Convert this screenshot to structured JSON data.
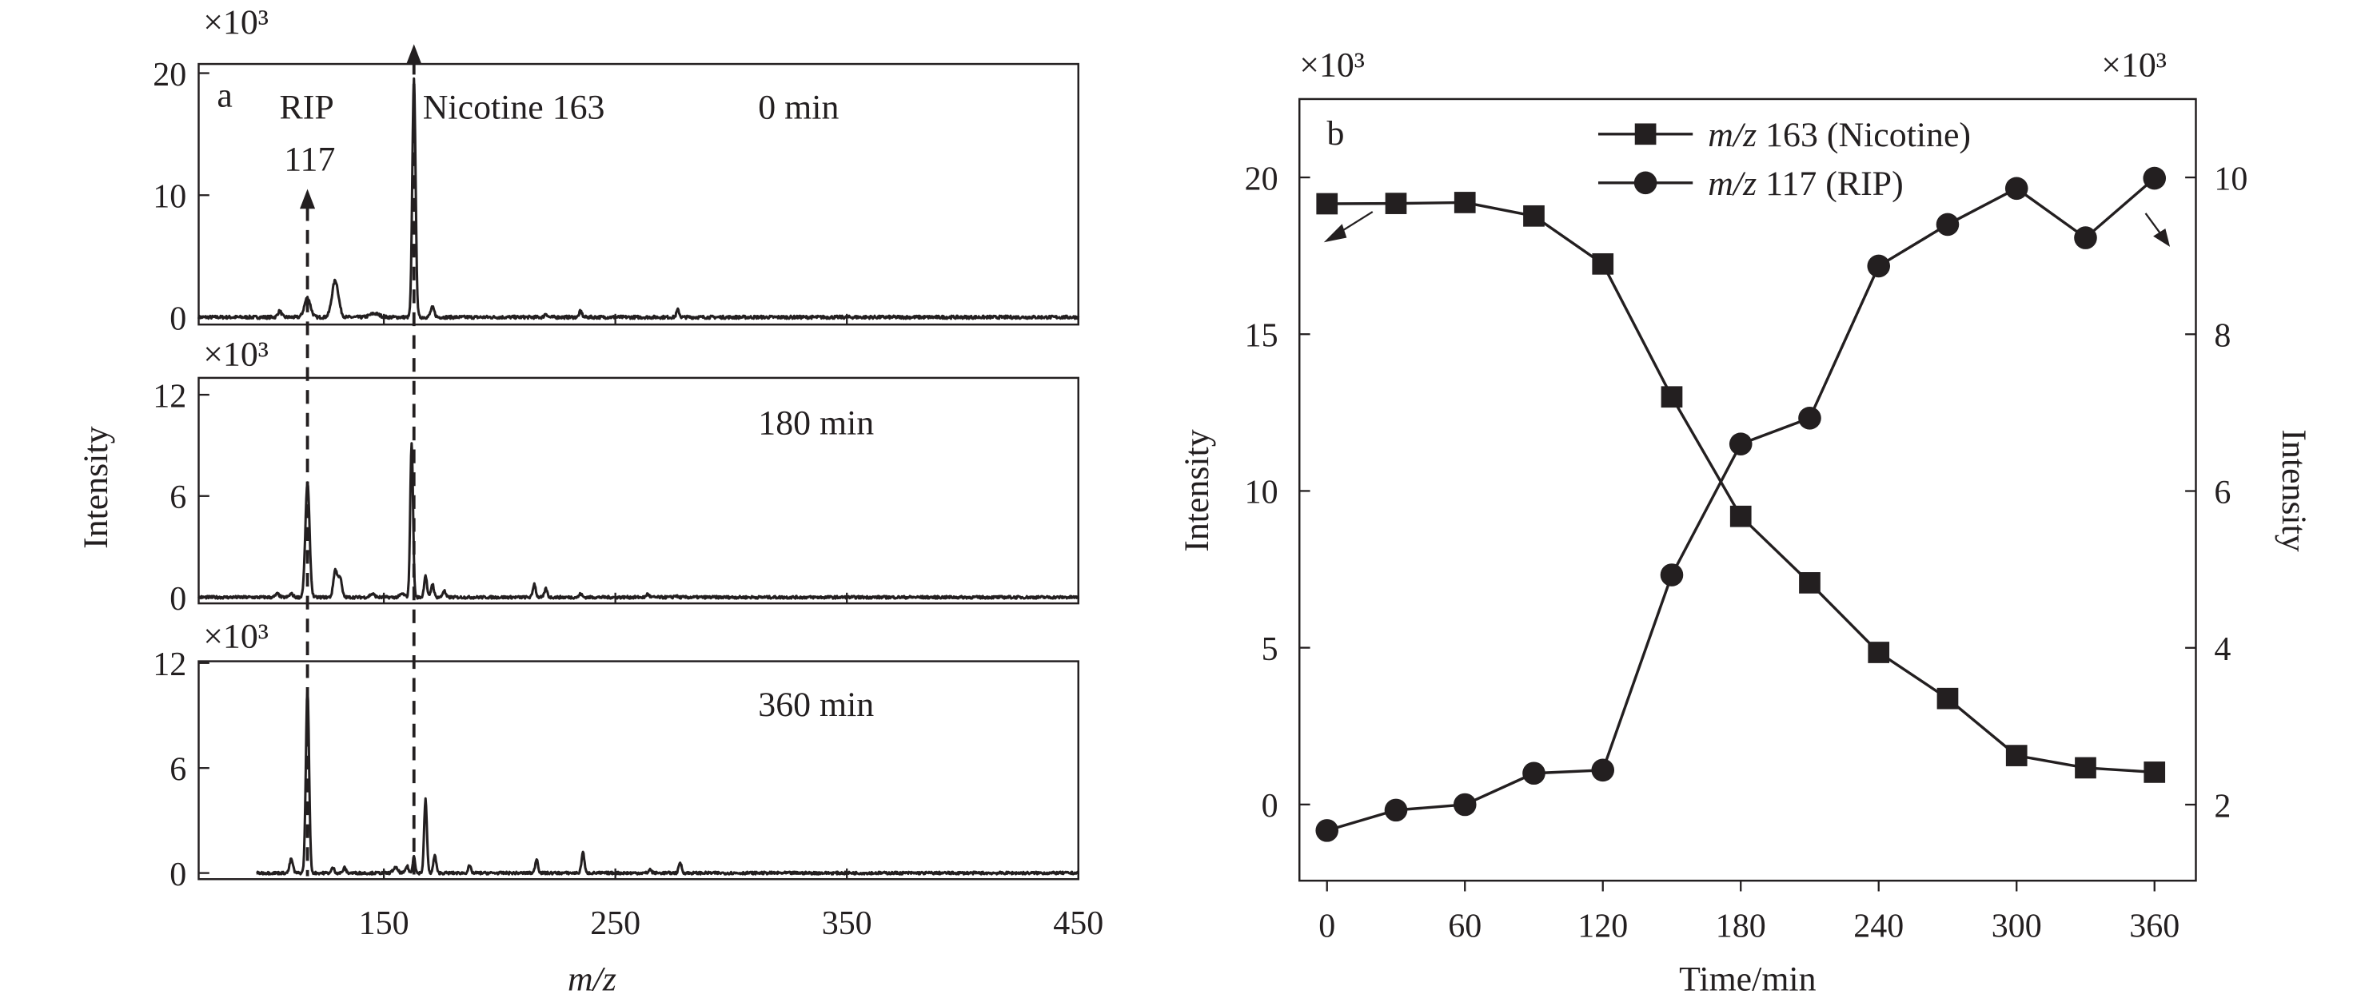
{
  "colors": {
    "ink": "#231f20",
    "background": "#ffffff"
  },
  "chart_data": [
    {
      "type": "line",
      "panel_label": "a",
      "xlabel": "m/z",
      "ylabel": "Intensity",
      "xlim": [
        70,
        450
      ],
      "xticks": [
        "150",
        "250",
        "350",
        "450"
      ],
      "annotations": {
        "rip_name": "RIP",
        "rip_mz": "117",
        "nicotine": "Nicotine 163"
      },
      "subplots": [
        {
          "label": "0 min",
          "multiplier": "×10³",
          "ylim": [
            -0.6,
            20.75
          ],
          "yticks": [
            "0",
            "10",
            "20"
          ],
          "trace_start": 70,
          "peaks": [
            [
              105,
              0.5,
              0.8
            ],
            [
              117,
              1.6,
              1.3
            ],
            [
              129,
              3.0,
              1.4
            ],
            [
              146,
              0.3,
              2
            ],
            [
              163,
              19.5,
              0.7
            ],
            [
              171,
              0.8,
              0.8
            ],
            [
              220,
              0.3,
              0.6
            ],
            [
              235,
              0.5,
              0.6
            ],
            [
              277,
              0.6,
              0.6
            ]
          ]
        },
        {
          "label": "180 min",
          "multiplier": "×10³",
          "ylim": [
            -0.36,
            13.0
          ],
          "yticks": [
            "0",
            "6",
            "12"
          ],
          "trace_start": 70,
          "peaks": [
            [
              104,
              0.2,
              0.8
            ],
            [
              110,
              0.2,
              0.8
            ],
            [
              117,
              6.8,
              0.9
            ],
            [
              129,
              1.6,
              0.8
            ],
            [
              131,
              1.2,
              0.8
            ],
            [
              145,
              0.2,
              1
            ],
            [
              158,
              0.2,
              1
            ],
            [
              162,
              9.2,
              0.6
            ],
            [
              168,
              1.3,
              0.6
            ],
            [
              171,
              0.8,
              0.6
            ],
            [
              176,
              0.4,
              0.6
            ],
            [
              215,
              0.8,
              0.6
            ],
            [
              220,
              0.5,
              0.6
            ],
            [
              235,
              0.2,
              0.6
            ],
            [
              264,
              0.2,
              0.6
            ],
            [
              276,
              0.1,
              0.6
            ]
          ]
        },
        {
          "label": "360 min",
          "multiplier": "×10³",
          "ylim": [
            -0.35,
            12.1
          ],
          "yticks": [
            "0",
            "6",
            "12"
          ],
          "trace_start": 95,
          "peaks": [
            [
              110,
              0.8,
              0.7
            ],
            [
              117,
              10.5,
              0.7
            ],
            [
              128,
              0.3,
              0.6
            ],
            [
              133,
              0.3,
              0.6
            ],
            [
              155,
              0.3,
              1
            ],
            [
              160,
              0.4,
              0.6
            ],
            [
              163,
              1.0,
              0.5
            ],
            [
              168,
              4.2,
              0.6
            ],
            [
              172,
              1.0,
              0.6
            ],
            [
              187,
              0.4,
              0.6
            ],
            [
              216,
              0.8,
              0.6
            ],
            [
              236,
              1.2,
              0.6
            ],
            [
              265,
              0.2,
              0.6
            ],
            [
              278,
              0.6,
              0.6
            ]
          ]
        }
      ]
    },
    {
      "type": "line",
      "panel_label": "b",
      "xlabel": "Time/min",
      "ylabel_left": "Intensity",
      "ylabel_right": "Intensity",
      "multiplier_left": "×10³",
      "multiplier_right": "×10³",
      "xlim": [
        -12,
        378
      ],
      "ylim_left": [
        -2.43,
        22.5
      ],
      "ylim_right": [
        1.03,
        11.0
      ],
      "xticks": [
        0,
        60,
        120,
        180,
        240,
        300,
        360
      ],
      "yticks_left": [
        0,
        5,
        10,
        15,
        20
      ],
      "yticks_right": [
        2,
        4,
        6,
        8,
        10
      ],
      "legend": "top-center",
      "x": [
        0,
        30,
        60,
        90,
        120,
        150,
        180,
        210,
        240,
        270,
        300,
        330,
        360
      ],
      "series": [
        {
          "name_var": "m/z",
          "name_text": " 163 (Nicotine)",
          "marker": "square",
          "axis": "left",
          "values": [
            19.16,
            19.17,
            19.2,
            18.77,
            17.24,
            13.0,
            9.19,
            7.07,
            4.85,
            3.38,
            1.56,
            1.17,
            1.03
          ]
        },
        {
          "name_var": "m/z",
          "name_text": " 117 (RIP)",
          "marker": "circle",
          "axis": "right",
          "values": [
            1.67,
            1.93,
            2.0,
            2.4,
            2.44,
            4.93,
            6.6,
            6.93,
            8.87,
            9.4,
            9.86,
            9.23,
            9.99
          ]
        }
      ]
    }
  ]
}
